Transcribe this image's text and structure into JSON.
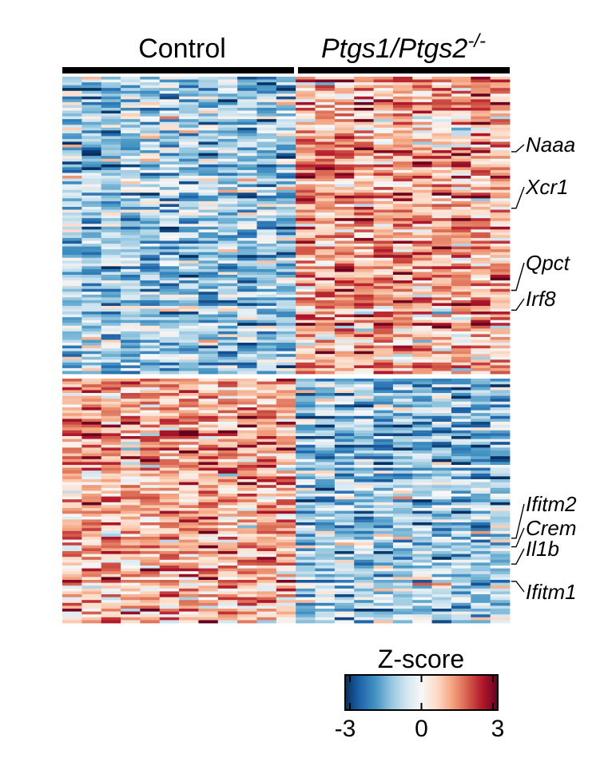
{
  "chart_data": {
    "type": "heatmap",
    "groups": [
      {
        "label": "Control",
        "label_parts": [
          {
            "text": "Control",
            "italic": false
          }
        ],
        "columns": 12
      },
      {
        "label": "Ptgs1/Ptgs2-/-",
        "label_parts": [
          {
            "text": "Ptgs1/Ptgs2",
            "italic": true
          },
          {
            "text": "-/-",
            "italic": true,
            "superscript": true
          }
        ],
        "columns": 11
      }
    ],
    "clusters": [
      {
        "rows": 105,
        "pattern": "up in Ptgs1/Ptgs2-/-"
      },
      {
        "rows": 85,
        "pattern": "down in Ptgs1/Ptgs2-/-"
      }
    ],
    "highlighted_genes": [
      {
        "name": "Naaa",
        "row": 26
      },
      {
        "name": "Xcr1",
        "row": 46
      },
      {
        "name": "Qpct",
        "row": 75
      },
      {
        "name": "Irf8",
        "row": 82
      },
      {
        "name": "Ifitm2",
        "row": 160
      },
      {
        "name": "Crem",
        "row": 163
      },
      {
        "name": "Il1b",
        "row": 169
      },
      {
        "name": "Ifitm1",
        "row": 175
      }
    ],
    "colorbar": {
      "title": "Z-score",
      "min": -3,
      "max": 3,
      "ticks": [
        -3,
        0,
        3
      ],
      "tick_labels": [
        "-3",
        "0",
        "3"
      ],
      "colors": [
        "#053061",
        "#2166ac",
        "#4393c3",
        "#92c5de",
        "#d1e5f0",
        "#f7f7f7",
        "#fddbc7",
        "#f4a582",
        "#d6604d",
        "#b2182b",
        "#67001f"
      ]
    }
  }
}
